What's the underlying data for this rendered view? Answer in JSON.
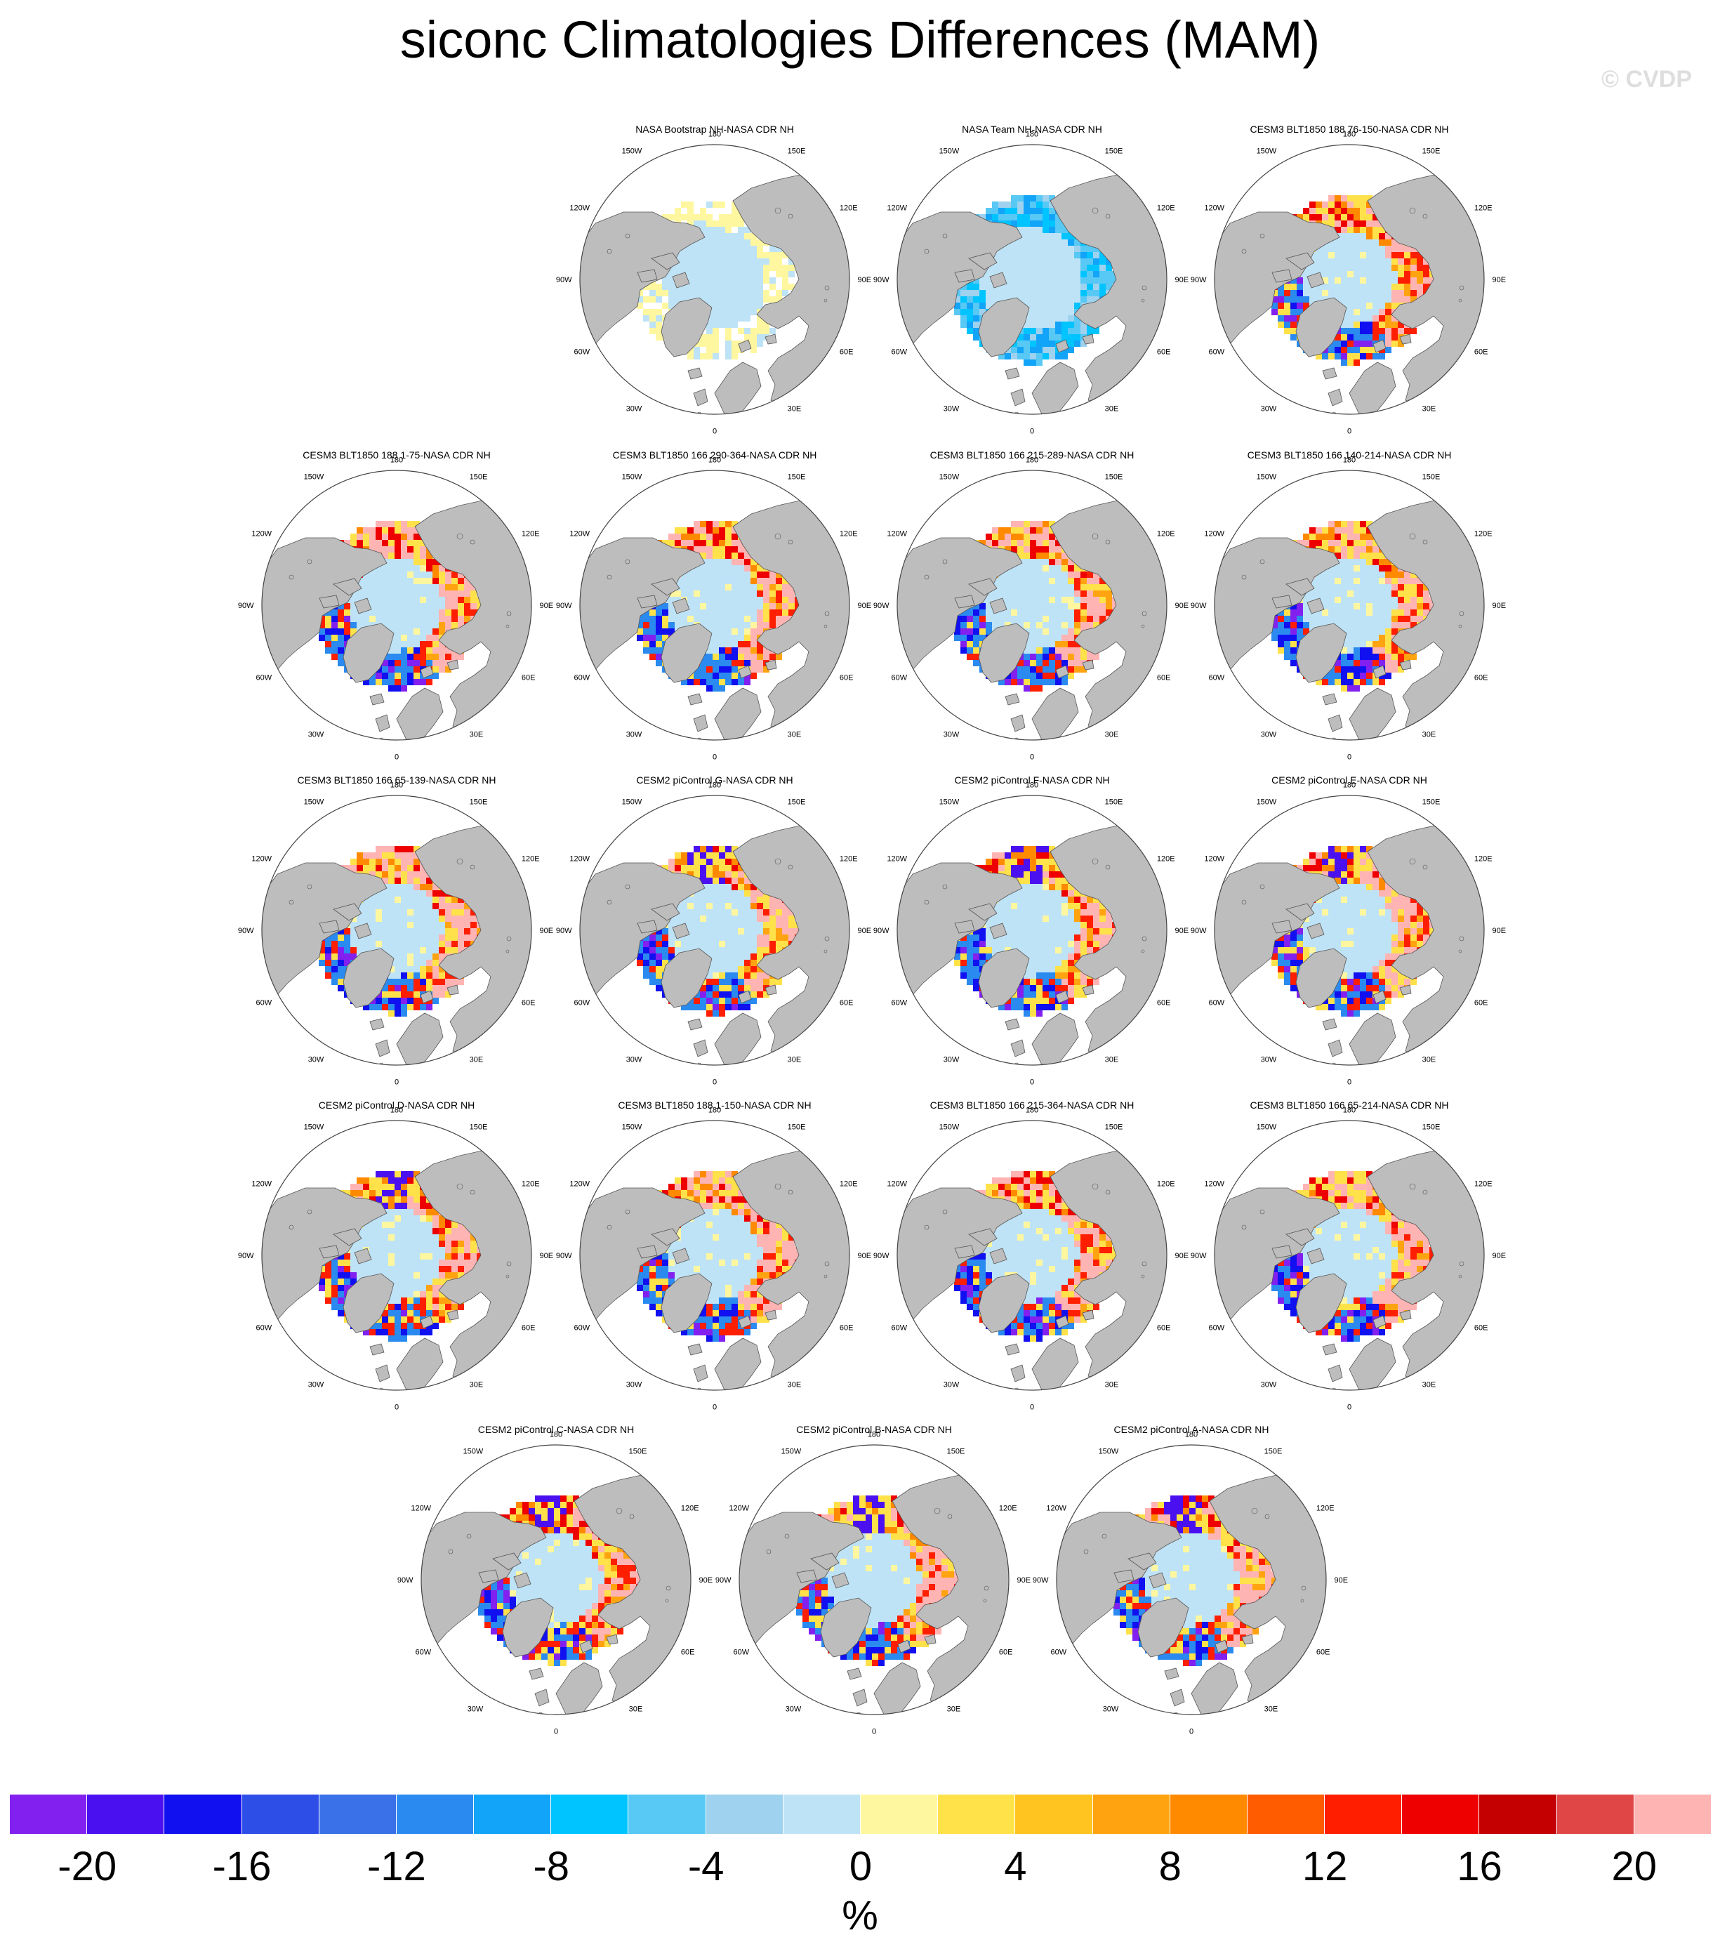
{
  "title": "siconc Climatologies Differences (MAM)",
  "watermark": "© CVDP",
  "chart_data": {
    "type": "heatmap",
    "projection": "north polar stereographic",
    "variable": "siconc",
    "season": "MAM",
    "units": "%",
    "colorbar": {
      "min": -20,
      "max": 20,
      "step": 2,
      "tick_labels": [
        "-20",
        "-16",
        "-12",
        "-8",
        "-4",
        "0",
        "4",
        "8",
        "12",
        "16",
        "20"
      ],
      "colors": [
        "#8220f0",
        "#4a10f0",
        "#1010f0",
        "#2e4ee8",
        "#3a70e8",
        "#2a8af0",
        "#12a4f8",
        "#00c4ff",
        "#58c8f4",
        "#9ed2ee",
        "#bfe3f6",
        "#fff7a0",
        "#ffe14a",
        "#ffc420",
        "#ffa410",
        "#ff8a00",
        "#ff5c00",
        "#ff1e00",
        "#ee0000",
        "#c40000",
        "#e04646",
        "#ffb4b4"
      ]
    },
    "longitude_labels": {
      "top": "180",
      "top_left": "150W",
      "top_right": "150E",
      "upper_left": "120W",
      "upper_right": "120E",
      "left": "90W",
      "right": "90E",
      "lower_left": "60W",
      "lower_right": "60E",
      "bottom_left": "30W",
      "bottom_right": "30E",
      "bottom": "0"
    },
    "panels": [
      {
        "title": "NASA Bootstrap NH-NASA CDR NH",
        "pattern": "bootstrap"
      },
      {
        "title": "NASA Team NH-NASA CDR NH",
        "pattern": "team"
      },
      {
        "title": "CESM3 BLT1850 188 76-150-NASA CDR NH",
        "pattern": "model"
      },
      {
        "title": "CESM3 BLT1850 188 1-75-NASA CDR NH",
        "pattern": "model"
      },
      {
        "title": "CESM3 BLT1850 166 290-364-NASA CDR NH",
        "pattern": "model"
      },
      {
        "title": "CESM3 BLT1850 166 215-289-NASA CDR NH",
        "pattern": "model"
      },
      {
        "title": "CESM3 BLT1850 166 140-214-NASA CDR NH",
        "pattern": "model"
      },
      {
        "title": "CESM3 BLT1850 166 65-139-NASA CDR NH",
        "pattern": "model"
      },
      {
        "title": "CESM2 piControl G-NASA CDR NH",
        "pattern": "cesm2"
      },
      {
        "title": "CESM2 piControl F-NASA CDR NH",
        "pattern": "cesm2"
      },
      {
        "title": "CESM2 piControl E-NASA CDR NH",
        "pattern": "cesm2"
      },
      {
        "title": "CESM2 piControl D-NASA CDR NH",
        "pattern": "cesm2"
      },
      {
        "title": "CESM3 BLT1850 188 1-150-NASA CDR NH",
        "pattern": "model"
      },
      {
        "title": "CESM3 BLT1850 166 215-364-NASA CDR NH",
        "pattern": "model"
      },
      {
        "title": "CESM3 BLT1850 166 65-214-NASA CDR NH",
        "pattern": "model"
      },
      {
        "title": "CESM2 piControl C-NASA CDR NH",
        "pattern": "cesm2"
      },
      {
        "title": "CESM2 piControl B-NASA CDR NH",
        "pattern": "cesm2"
      },
      {
        "title": "CESM2 piControl A-NASA CDR NH",
        "pattern": "cesm2"
      }
    ]
  }
}
